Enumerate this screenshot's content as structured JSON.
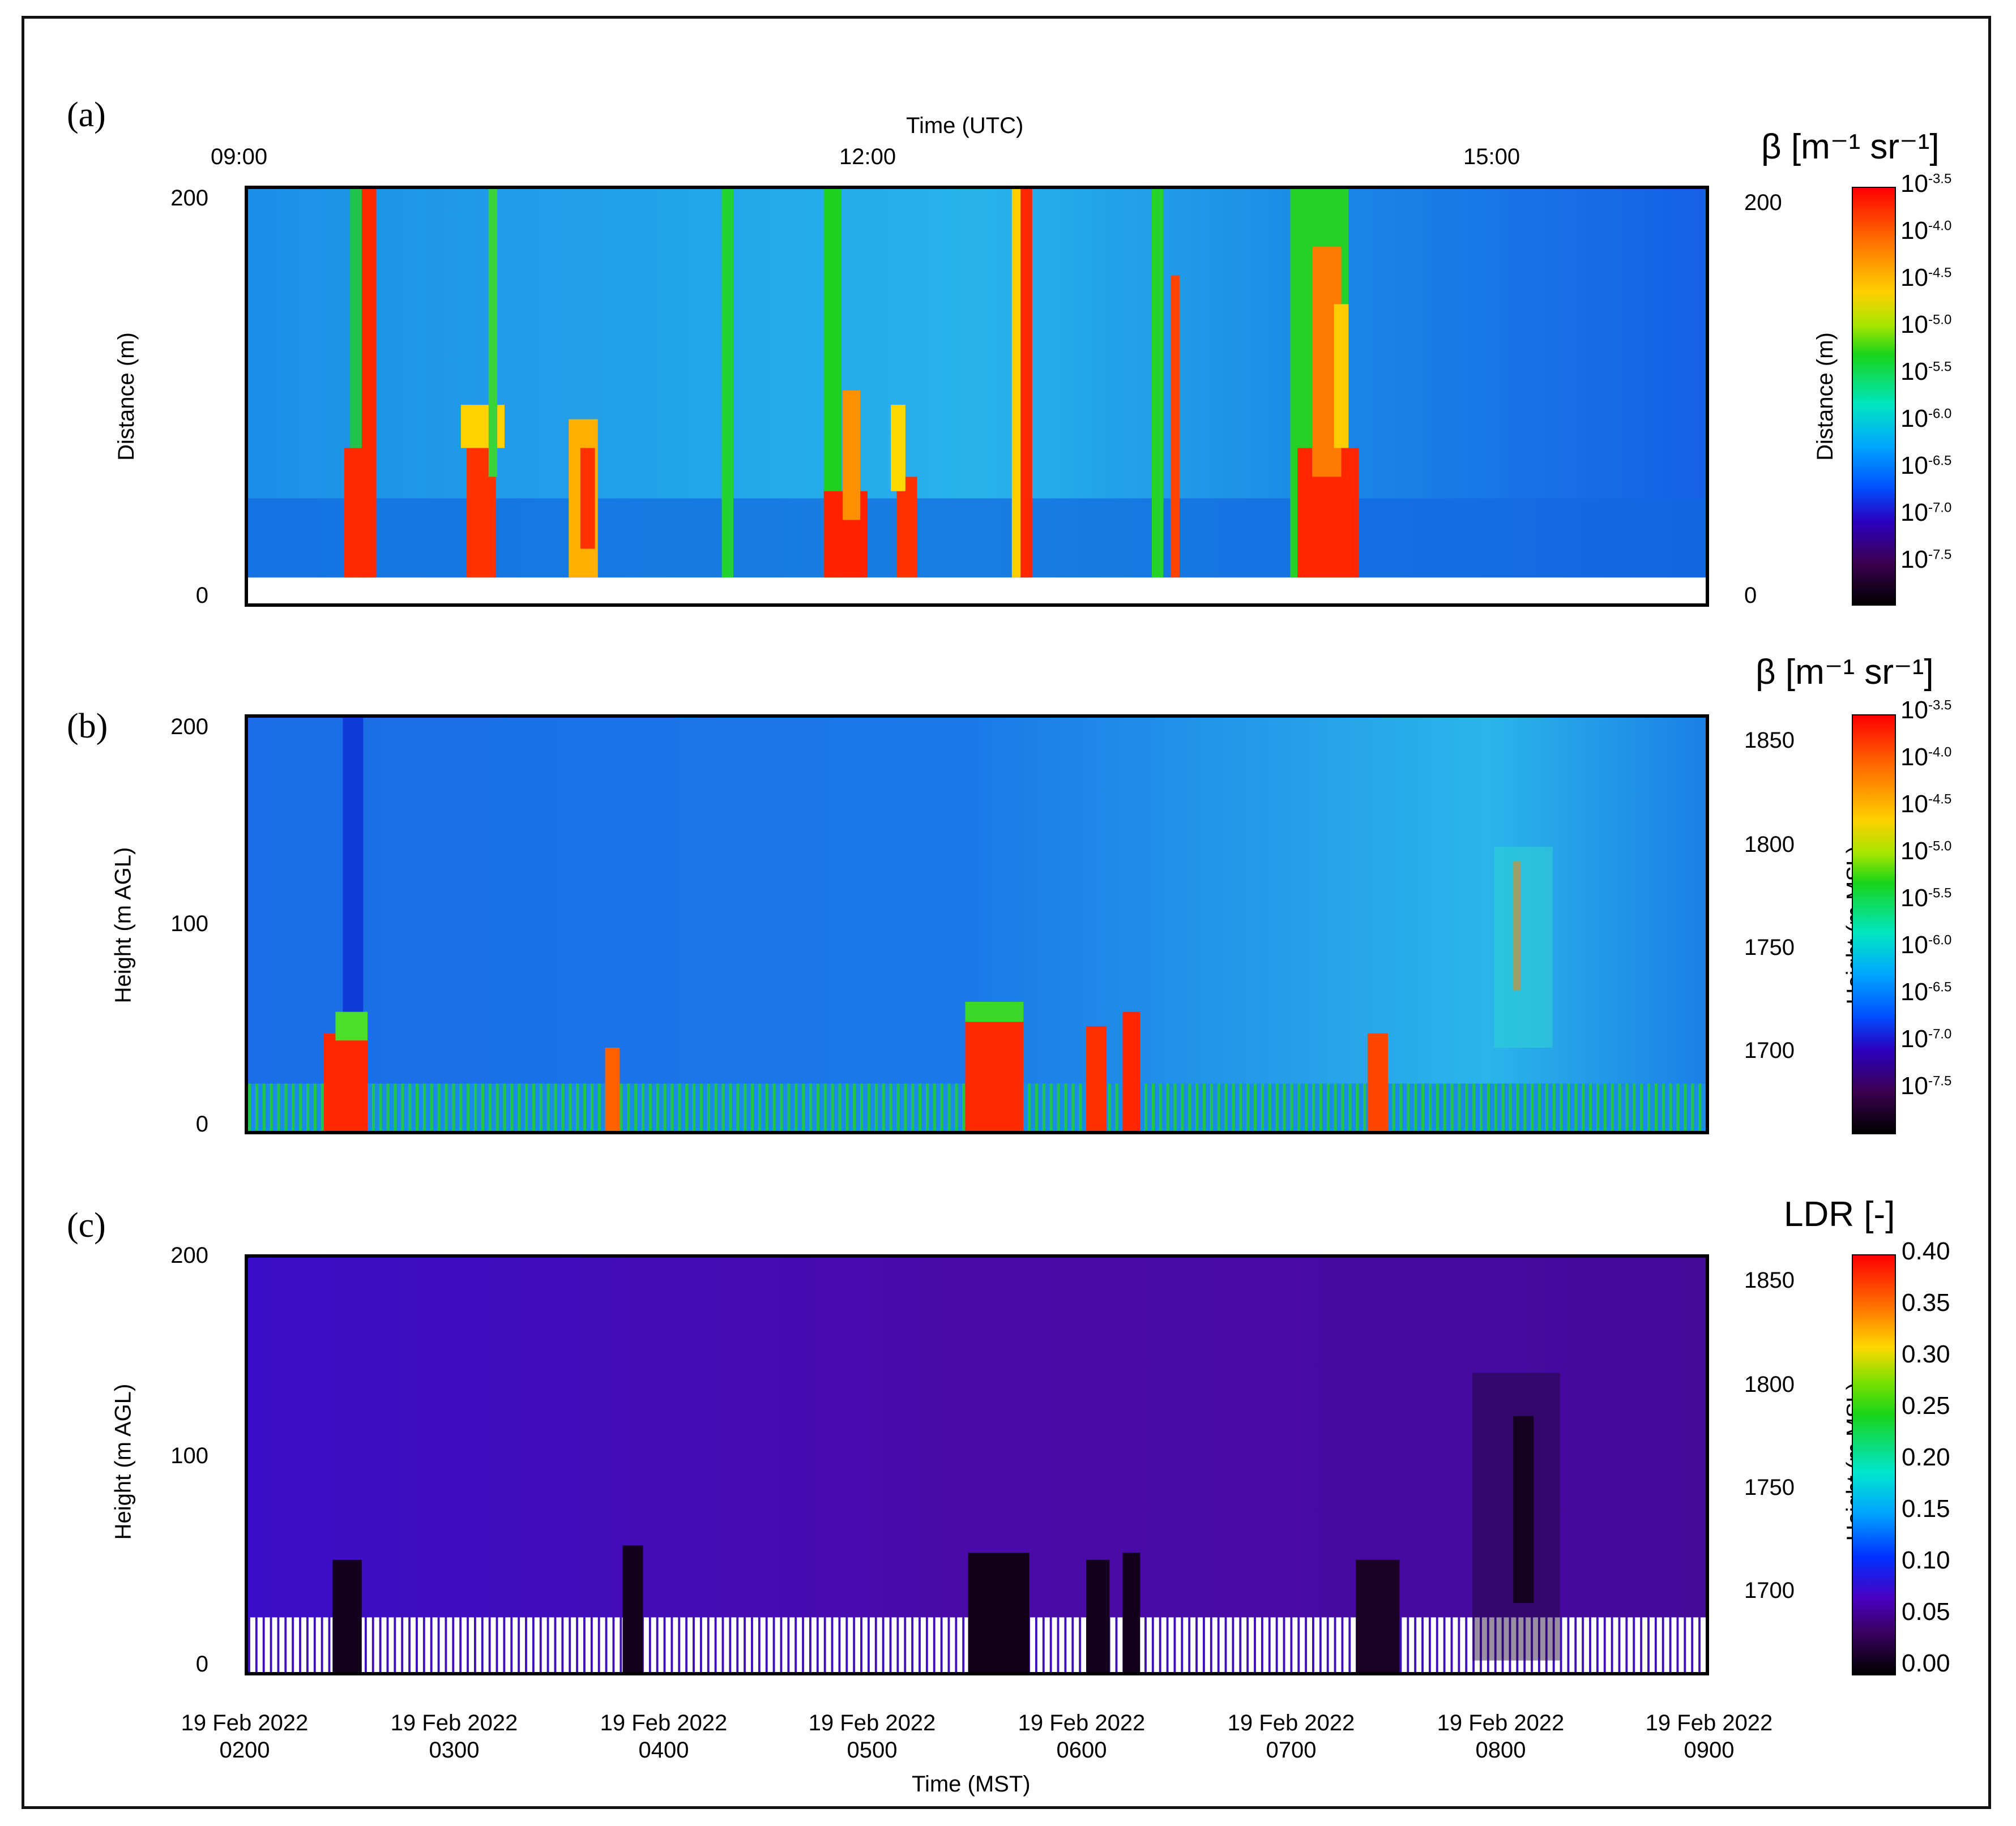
{
  "panels": {
    "a": {
      "label": "(a)",
      "top_axis_title": "Time (UTC)",
      "top_ticks": [
        "09:00",
        "12:00",
        "15:00"
      ],
      "ylabel_left": "Distance (m)",
      "ylabel_right": "Distance (m)",
      "yticks_left": [
        "200",
        "0"
      ],
      "yticks_right": [
        "200",
        "0"
      ],
      "colorbar": {
        "title": "β [m⁻¹ sr⁻¹]",
        "exponents": [
          "-3.5",
          "-4.0",
          "-4.5",
          "-5.0",
          "-5.5",
          "-6.0",
          "-6.5",
          "-7.0",
          "-7.5"
        ],
        "base": "10"
      }
    },
    "b": {
      "label": "(b)",
      "ylabel_left": "Height (m AGL)",
      "ylabel_right": "Height (m MSL)",
      "yticks_left": [
        "200",
        "100",
        "0"
      ],
      "yticks_right": [
        "1850",
        "1800",
        "1750",
        "1700"
      ],
      "colorbar": {
        "title": "β [m⁻¹ sr⁻¹]",
        "exponents": [
          "-3.5",
          "-4.0",
          "-4.5",
          "-5.0",
          "-5.5",
          "-6.0",
          "-6.5",
          "-7.0",
          "-7.5"
        ],
        "base": "10"
      }
    },
    "c": {
      "label": "(c)",
      "ylabel_left": "Height (m AGL)",
      "ylabel_right": "Height (m MSL)",
      "yticks_left": [
        "200",
        "100",
        "0"
      ],
      "yticks_right": [
        "1850",
        "1800",
        "1750",
        "1700"
      ],
      "colorbar": {
        "title": "LDR [-]",
        "values": [
          "0.40",
          "0.35",
          "0.30",
          "0.25",
          "0.20",
          "0.15",
          "0.10",
          "0.05",
          "0.00"
        ]
      }
    }
  },
  "x_axis": {
    "title": "Time (MST)",
    "ticks": [
      {
        "date": "19 Feb 2022",
        "time": "0200"
      },
      {
        "date": "19 Feb 2022",
        "time": "0300"
      },
      {
        "date": "19 Feb 2022",
        "time": "0400"
      },
      {
        "date": "19 Feb 2022",
        "time": "0500"
      },
      {
        "date": "19 Feb 2022",
        "time": "0600"
      },
      {
        "date": "19 Feb 2022",
        "time": "0700"
      },
      {
        "date": "19 Feb 2022",
        "time": "0800"
      },
      {
        "date": "19 Feb 2022",
        "time": "0900"
      }
    ]
  },
  "chart_data": [
    {
      "type": "heatmap",
      "panel": "a",
      "title": "β [m⁻¹ sr⁻¹]",
      "xlabel": "Time (UTC)",
      "ylabel": "Distance (m)",
      "xlim_utc_hours": [
        9,
        16
      ],
      "ylim": [
        0,
        200
      ],
      "color_scale": "log10 backscatter -7.5 to -3.5",
      "features": [
        {
          "time_utc": "09:35",
          "note": "high backscatter plume full column"
        },
        {
          "time_utc": "10:10",
          "note": "high backscatter near surface"
        },
        {
          "time_utc": "11:45",
          "note": "high backscatter plume"
        },
        {
          "time_utc": "12:15",
          "note": "high backscatter near surface"
        },
        {
          "time_utc": "12:50",
          "note": "high backscatter plume full column"
        },
        {
          "time_utc": "14:10",
          "note": "high backscatter plume full column"
        }
      ]
    },
    {
      "type": "heatmap",
      "panel": "b",
      "title": "β [m⁻¹ sr⁻¹]",
      "xlabel": "Time (MST)",
      "ylabel": "Height (m AGL)",
      "xlim_mst_hours": [
        2,
        9
      ],
      "ylim": [
        0,
        200
      ],
      "ylim_msl": [
        1660,
        1860
      ],
      "color_scale": "log10 backscatter -7.5 to -3.5",
      "features": [
        {
          "time_mst": "02:25",
          "height_top_m": 60
        },
        {
          "time_mst": "03:50",
          "height_top_m": 50
        },
        {
          "time_mst": "05:35",
          "height_top_m": 55
        },
        {
          "time_mst": "06:05",
          "height_top_m": 55
        },
        {
          "time_mst": "06:20",
          "height_top_m": 60
        },
        {
          "time_mst": "07:25",
          "height_top_m": 50
        },
        {
          "time_mst": "08:05",
          "height_top_m": 130
        }
      ]
    },
    {
      "type": "heatmap",
      "panel": "c",
      "title": "LDR [-]",
      "xlabel": "Time (MST)",
      "ylabel": "Height (m AGL)",
      "xlim_mst_hours": [
        2,
        9
      ],
      "ylim": [
        0,
        200
      ],
      "ylim_msl": [
        1660,
        1860
      ],
      "color_range": [
        0.0,
        0.4
      ],
      "features": [
        {
          "time_mst": "02:25",
          "note": "low LDR plume"
        },
        {
          "time_mst": "05:35",
          "note": "low LDR plume"
        },
        {
          "time_mst": "08:05",
          "note": "low LDR plume up to ~140 m"
        }
      ]
    }
  ]
}
